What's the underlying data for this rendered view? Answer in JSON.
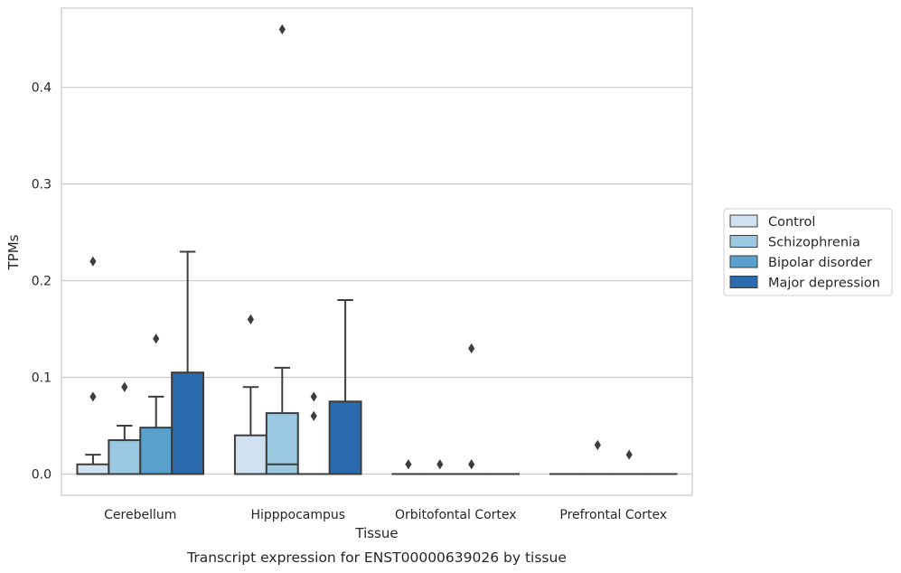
{
  "caption": "Transcript expression for ENST00000639026 by tissue",
  "chart_data": {
    "type": "box",
    "xlabel": "Tissue",
    "ylabel": "TPMs",
    "ylim": [
      -0.022,
      0.482
    ],
    "yticks": [
      0.0,
      0.1,
      0.2,
      0.3,
      0.4
    ],
    "ytick_labels": [
      "0.0",
      "0.1",
      "0.2",
      "0.3",
      "0.4"
    ],
    "grid": "horizontal",
    "legend_position": "right",
    "categories": [
      "Cerebellum",
      "Hipppocampus",
      "Orbitofontal Cortex",
      "Prefrontal Cortex"
    ],
    "series": [
      {
        "name": "Control",
        "color": "#d0e1f2",
        "boxes": [
          {
            "q1": 0.0,
            "median": 0.0,
            "q3": 0.01,
            "whisker_low": 0.0,
            "whisker_high": 0.02,
            "outliers": [
              0.08,
              0.22
            ]
          },
          {
            "q1": 0.0,
            "median": 0.0,
            "q3": 0.04,
            "whisker_low": 0.0,
            "whisker_high": 0.09,
            "outliers": [
              0.16
            ]
          },
          {
            "q1": 0.0,
            "median": 0.0,
            "q3": 0.0,
            "whisker_low": 0.0,
            "whisker_high": 0.0,
            "outliers": [
              0.01
            ]
          },
          {
            "q1": 0.0,
            "median": 0.0,
            "q3": 0.0,
            "whisker_low": 0.0,
            "whisker_high": 0.0,
            "outliers": []
          }
        ]
      },
      {
        "name": "Schizophrenia",
        "color": "#9ac8e0",
        "boxes": [
          {
            "q1": 0.0,
            "median": 0.0,
            "q3": 0.035,
            "whisker_low": 0.0,
            "whisker_high": 0.05,
            "outliers": [
              0.09
            ]
          },
          {
            "q1": 0.0,
            "median": 0.01,
            "q3": 0.063,
            "whisker_low": 0.0,
            "whisker_high": 0.11,
            "outliers": [
              0.46
            ]
          },
          {
            "q1": 0.0,
            "median": 0.0,
            "q3": 0.0,
            "whisker_low": 0.0,
            "whisker_high": 0.0,
            "outliers": [
              0.01
            ]
          },
          {
            "q1": 0.0,
            "median": 0.0,
            "q3": 0.0,
            "whisker_low": 0.0,
            "whisker_high": 0.0,
            "outliers": [
              0.03
            ]
          }
        ]
      },
      {
        "name": "Bipolar disorder",
        "color": "#5aa0cd",
        "boxes": [
          {
            "q1": 0.0,
            "median": 0.0,
            "q3": 0.048,
            "whisker_low": 0.0,
            "whisker_high": 0.08,
            "outliers": [
              0.14
            ]
          },
          {
            "q1": 0.0,
            "median": 0.0,
            "q3": 0.0,
            "whisker_low": 0.0,
            "whisker_high": 0.0,
            "outliers": [
              0.06,
              0.08
            ]
          },
          {
            "q1": 0.0,
            "median": 0.0,
            "q3": 0.0,
            "whisker_low": 0.0,
            "whisker_high": 0.0,
            "outliers": [
              0.01,
              0.13
            ]
          },
          {
            "q1": 0.0,
            "median": 0.0,
            "q3": 0.0,
            "whisker_low": 0.0,
            "whisker_high": 0.0,
            "outliers": [
              0.02
            ]
          }
        ]
      },
      {
        "name": "Major depression",
        "color": "#2a6aad",
        "boxes": [
          {
            "q1": 0.0,
            "median": 0.0,
            "q3": 0.105,
            "whisker_low": 0.0,
            "whisker_high": 0.23,
            "outliers": []
          },
          {
            "q1": 0.0,
            "median": 0.0,
            "q3": 0.075,
            "whisker_low": 0.0,
            "whisker_high": 0.18,
            "outliers": []
          },
          {
            "q1": 0.0,
            "median": 0.0,
            "q3": 0.0,
            "whisker_low": 0.0,
            "whisker_high": 0.0,
            "outliers": []
          },
          {
            "q1": 0.0,
            "median": 0.0,
            "q3": 0.0,
            "whisker_low": 0.0,
            "whisker_high": 0.0,
            "outliers": []
          }
        ]
      }
    ]
  }
}
